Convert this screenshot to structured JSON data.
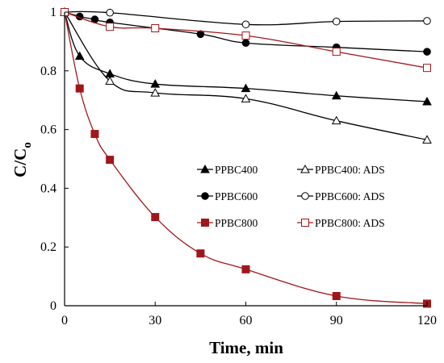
{
  "chart_data": {
    "type": "line",
    "xlabel": "Time, min",
    "ylabel": "C/C",
    "ylabel_subscript": "o",
    "xlim": [
      0,
      120
    ],
    "ylim": [
      0,
      1
    ],
    "xticks": [
      0,
      30,
      60,
      90,
      120
    ],
    "yticks": [
      0,
      0.2,
      0.4,
      0.6,
      0.8,
      1
    ],
    "ytick_labels": [
      "0",
      "0.2",
      "0.4",
      "0.6",
      "0.8",
      "1"
    ],
    "grid": false,
    "legend_position": "center-right",
    "series": [
      {
        "name": "PPBC400",
        "marker": "triangle-filled",
        "color": "#000000",
        "x": [
          0,
          5,
          15,
          30,
          60,
          90,
          120
        ],
        "y": [
          1.0,
          0.85,
          0.79,
          0.755,
          0.74,
          0.715,
          0.695
        ]
      },
      {
        "name": "PPBC400: ADS",
        "marker": "triangle-open",
        "color": "#000000",
        "x": [
          0,
          15,
          30,
          60,
          90,
          120
        ],
        "y": [
          1.0,
          0.765,
          0.725,
          0.705,
          0.63,
          0.565
        ]
      },
      {
        "name": "PPBC600",
        "marker": "circle-filled",
        "color": "#000000",
        "x": [
          0,
          5,
          10,
          15,
          45,
          60,
          90,
          120
        ],
        "y": [
          1.0,
          0.985,
          0.975,
          0.965,
          0.925,
          0.895,
          0.88,
          0.865
        ]
      },
      {
        "name": "PPBC600: ADS",
        "marker": "circle-open",
        "color": "#000000",
        "x": [
          0,
          15,
          60,
          90,
          120
        ],
        "y": [
          1.0,
          0.998,
          0.958,
          0.968,
          0.97
        ]
      },
      {
        "name": "PPBC800",
        "marker": "square-filled",
        "color": "#a0171b",
        "x": [
          0,
          5,
          10,
          15,
          30,
          45,
          60,
          90,
          120
        ],
        "y": [
          1.0,
          0.74,
          0.585,
          0.497,
          0.302,
          0.178,
          0.124,
          0.033,
          0.007
        ]
      },
      {
        "name": "PPBC800: ADS",
        "marker": "square-open",
        "color": "#a0171b",
        "x": [
          0,
          15,
          30,
          60,
          90,
          120
        ],
        "y": [
          1.0,
          0.95,
          0.945,
          0.92,
          0.865,
          0.81
        ]
      }
    ]
  }
}
